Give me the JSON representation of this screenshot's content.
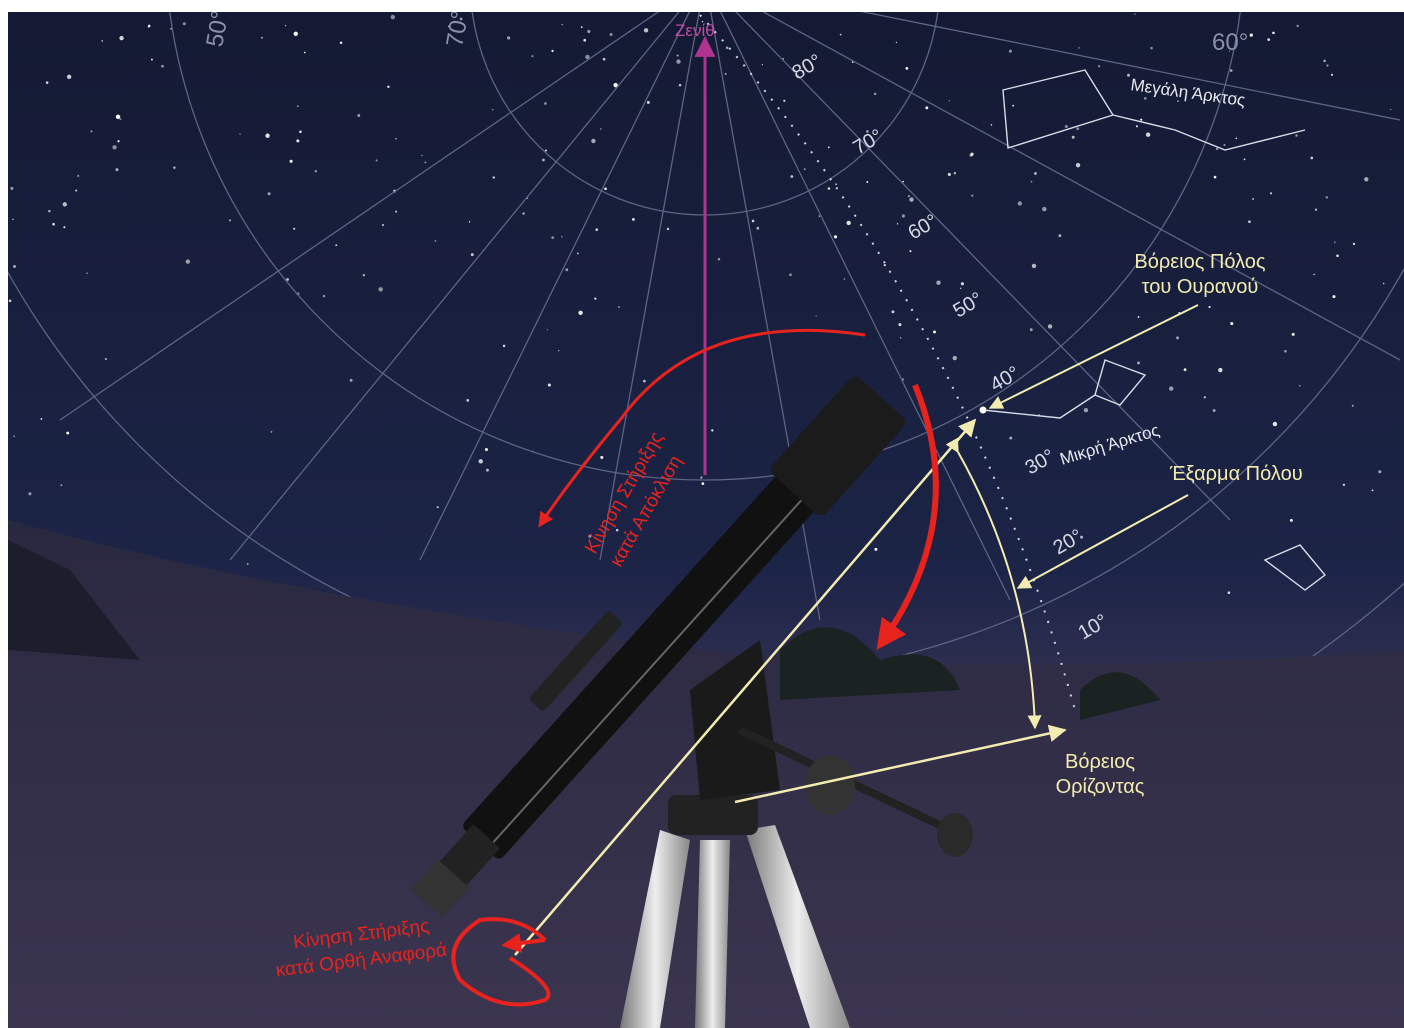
{
  "labels": {
    "zenith": "Ζενίθ",
    "ursa_major": "Μεγάλη Άρκτος",
    "north_pole": [
      "Βόρειος Πόλος",
      "του Ουρανού"
    ],
    "ursa_minor": "Μικρή Άρκτος",
    "polar_altitude": "Έξαρμα Πόλου",
    "north_horizon": [
      "Βόρειος",
      "Ορίζοντας"
    ],
    "dec_motion": [
      "Κίνηση Στήριξης",
      "κατά Απόκλιση"
    ],
    "ra_motion": [
      "Κίνηση Στήριξης",
      "κατά Ορθή Αναφορά"
    ]
  },
  "altitude_scale": [
    "80°",
    "70°",
    "60°",
    "50°",
    "40°",
    "30°",
    "20°",
    "10°"
  ],
  "grid_labels": [
    "50°",
    "70°",
    "60°"
  ]
}
